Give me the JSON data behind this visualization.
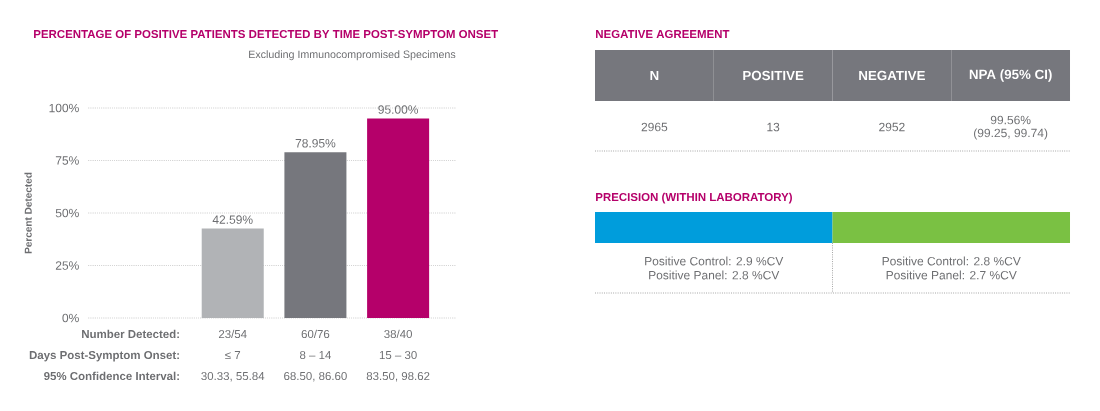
{
  "chart_data": [
    {
      "type": "bar",
      "title": "PERCENTAGE OF POSITIVE PATIENTS DETECTED BY TIME POST-SYMPTOM ONSET",
      "subtitle": "Excluding Immunocompromised Specimens",
      "ylabel": "Percent Detected",
      "xlabel": "Days Post-Symptom Onset:",
      "categories": [
        null,
        "≤ 7",
        "8 – 14",
        "15 – 30"
      ],
      "values": [
        null,
        42.59,
        78.95,
        95.0
      ],
      "colors": [
        "#b1b3b6",
        "#b1b3b6",
        "#76777d",
        "#b5006a"
      ],
      "value_labels": [
        null,
        "42.59%",
        "78.95%",
        "95.00%"
      ],
      "ylim": [
        0,
        100
      ],
      "yticks": [
        {
          "value": 0,
          "label": "0%"
        },
        {
          "value": 25,
          "label": "25%"
        },
        {
          "value": 50,
          "label": "50%"
        },
        {
          "value": 75,
          "label": "75%"
        },
        {
          "value": 100,
          "label": "100%"
        }
      ],
      "grid": "y",
      "annotations": [
        "Number Detected:",
        "23/54",
        "60/76",
        "38/40",
        "95% Confidence Interval:",
        "30.33, 55.84",
        "68.50, 86.60",
        "83.50, 98.62"
      ]
    },
    {
      "type": "other",
      "title": "NEGATIVE AGREEMENT",
      "categories": [
        "N",
        "POSITIVE",
        "NEGATIVE",
        "NPA (95% CI)"
      ],
      "colors": [
        "#76777d"
      ],
      "annotations": [
        "2965",
        "13",
        "2952",
        "99.56%",
        "(99.25, 99.74)"
      ]
    },
    {
      "type": "other",
      "title": "PRECISION (WITHIN LABORATORY)",
      "categories": [
        null,
        null
      ],
      "colors": [
        "#009ddc",
        "#7ac143"
      ],
      "annotations": [
        "Positive Control: 2.9 %CV",
        "Positive Panel: 2.8 %CV",
        "Positive Control: 2.8 %CV",
        "Positive Panel: 2.7 %CV"
      ]
    }
  ]
}
